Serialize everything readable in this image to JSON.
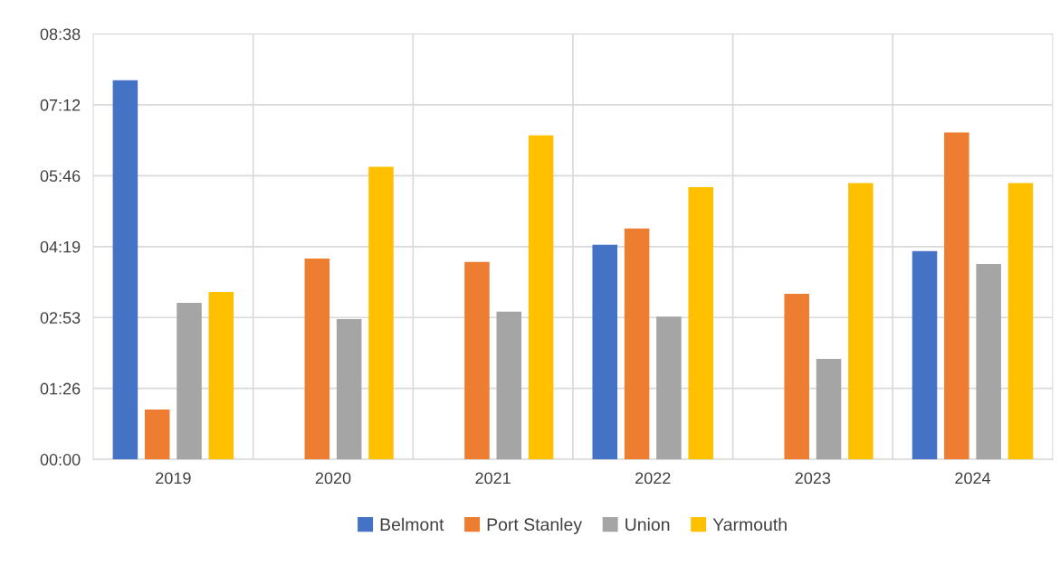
{
  "chart_data": {
    "type": "bar",
    "categories": [
      "2019",
      "2020",
      "2021",
      "2022",
      "2023",
      "2024"
    ],
    "series": [
      {
        "name": "Belmont",
        "color": "#4472c4",
        "values": [
          7.7,
          null,
          null,
          4.36,
          null,
          4.23
        ]
      },
      {
        "name": "Port Stanley",
        "color": "#ed7d31",
        "values": [
          1.01,
          4.08,
          4.01,
          4.69,
          3.36,
          6.64
        ]
      },
      {
        "name": "Union",
        "color": "#a5a5a5",
        "values": [
          3.18,
          2.85,
          3.0,
          2.9,
          2.04,
          3.97
        ]
      },
      {
        "name": "Yarmouth",
        "color": "#ffc000",
        "values": [
          3.4,
          5.94,
          6.58,
          5.53,
          5.61,
          5.61
        ]
      }
    ],
    "ylim": [
      0,
      8.64
    ],
    "yticks": [
      {
        "value": 0,
        "label": "00:00"
      },
      {
        "value": 1.44,
        "label": "01:26"
      },
      {
        "value": 2.88,
        "label": "02:53"
      },
      {
        "value": 4.32,
        "label": "04:19"
      },
      {
        "value": 5.76,
        "label": "05:46"
      },
      {
        "value": 7.2,
        "label": "07:12"
      },
      {
        "value": 8.64,
        "label": "08:38"
      }
    ],
    "grid": true,
    "legend": "bottom"
  }
}
